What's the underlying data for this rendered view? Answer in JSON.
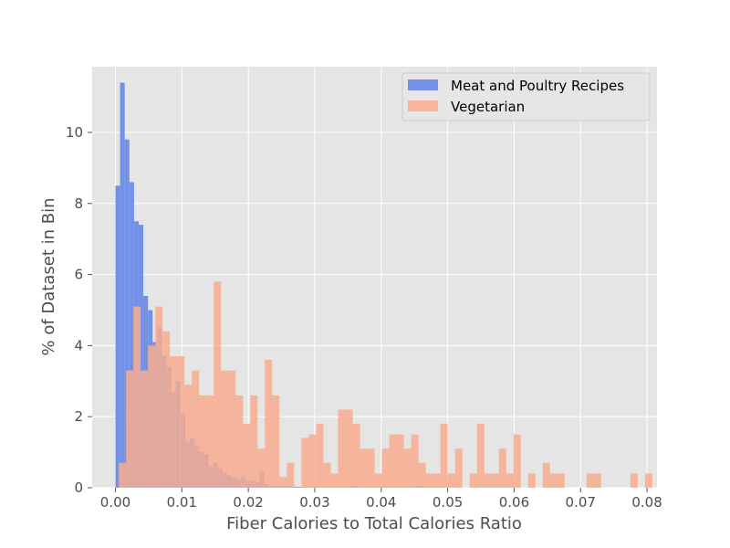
{
  "chart_data": {
    "type": "histogram",
    "xlabel": "Fiber Calories to Total Calories Ratio",
    "ylabel": "% of Dataset in Bin",
    "xlim": [
      -0.0035,
      0.0815
    ],
    "ylim": [
      0,
      11.85
    ],
    "xticks": [
      0.0,
      0.01,
      0.02,
      0.03,
      0.04,
      0.05,
      0.06,
      0.07,
      0.08
    ],
    "xtick_labels": [
      "0.00",
      "0.01",
      "0.02",
      "0.03",
      "0.04",
      "0.05",
      "0.06",
      "0.07",
      "0.08"
    ],
    "yticks": [
      0,
      2,
      4,
      6,
      8,
      10
    ],
    "ytick_labels": [
      "0",
      "2",
      "4",
      "6",
      "8",
      "10"
    ],
    "grid": true,
    "legend_position": "top-right",
    "style": {
      "background": "#e5e5e5",
      "grid_color": "#ffffff"
    },
    "series": [
      {
        "name": "Meat and Poultry Recipes",
        "color": "#6d8ce6",
        "opacity": 0.95,
        "bin_start": 0.0,
        "bin_width": 0.0007,
        "values": [
          8.5,
          11.4,
          9.8,
          8.6,
          7.5,
          7.4,
          5.4,
          5.0,
          4.1,
          4.5,
          3.7,
          3.4,
          2.7,
          3.0,
          2.1,
          1.3,
          1.4,
          1.2,
          1.0,
          0.95,
          0.6,
          0.7,
          0.55,
          0.45,
          0.35,
          0.3,
          0.25,
          0.3,
          0.2,
          0.2,
          0.15,
          0.45,
          0.1,
          0.05,
          0.05,
          0.05,
          0.05,
          0.05,
          0.02,
          0.02,
          0.02,
          0.02,
          0.02,
          0.02,
          0.02,
          0.02,
          0.02,
          0.02,
          0.02,
          0.02,
          0.02,
          0.05,
          0.02,
          0.02,
          0.02,
          0.02,
          0.02,
          0.02,
          0.02,
          0.02,
          0.02,
          0.02,
          0.02,
          0.02,
          0.02,
          0.05,
          0.02,
          0.02,
          0.02,
          0.02
        ]
      },
      {
        "name": "Vegetarian",
        "color": "#f9ab8e",
        "opacity": 0.85,
        "bin_start": 0.0005,
        "bin_width": 0.0011,
        "values": [
          0.7,
          3.3,
          5.1,
          3.3,
          4.0,
          5.1,
          4.4,
          3.7,
          3.7,
          2.9,
          3.3,
          2.6,
          2.6,
          5.8,
          3.3,
          3.3,
          2.6,
          1.8,
          2.6,
          1.1,
          3.6,
          2.6,
          0.3,
          0.7,
          0.0,
          1.4,
          1.5,
          1.8,
          0.7,
          0.4,
          2.2,
          2.2,
          1.8,
          1.1,
          1.1,
          0.4,
          1.1,
          1.5,
          1.5,
          1.1,
          1.5,
          0.7,
          0.4,
          0.4,
          1.8,
          0.4,
          1.1,
          0.0,
          0.4,
          1.8,
          0.4,
          0.4,
          1.1,
          0.4,
          1.5,
          0.0,
          0.4,
          0.0,
          0.7,
          0.4,
          0.4,
          0.0,
          0.0,
          0.0,
          0.4,
          0.4,
          0.0,
          0.0,
          0.0,
          0.0,
          0.4,
          0.0,
          0.4
        ]
      }
    ]
  }
}
